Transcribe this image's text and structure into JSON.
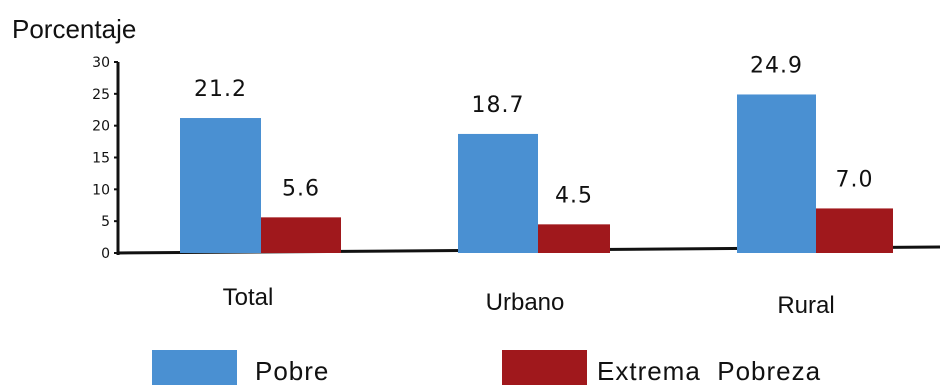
{
  "chart_data": {
    "type": "bar",
    "ylabel": "Porcentaje",
    "xlabel": "",
    "title": "",
    "ylim": [
      0,
      30
    ],
    "yticks": [
      0,
      5,
      10,
      15,
      20,
      25,
      30
    ],
    "grid": false,
    "legend_position": "bottom",
    "categories": [
      "Total",
      "Urbano",
      "Rural"
    ],
    "series": [
      {
        "name": "Pobre",
        "color": "#4a90d2",
        "values": [
          21.2,
          18.7,
          24.9
        ],
        "labels": [
          "21.2",
          "18.7",
          "24.9"
        ]
      },
      {
        "name": "Extrema  Pobreza",
        "color": "#a0181c",
        "values": [
          5.6,
          4.5,
          7.0
        ],
        "labels": [
          "5.6",
          "4.5",
          "7.0"
        ]
      }
    ]
  }
}
